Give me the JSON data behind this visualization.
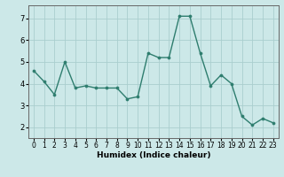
{
  "x": [
    0,
    1,
    2,
    3,
    4,
    5,
    6,
    7,
    8,
    9,
    10,
    11,
    12,
    13,
    14,
    15,
    16,
    17,
    18,
    19,
    20,
    21,
    22,
    23
  ],
  "y": [
    4.6,
    4.1,
    3.5,
    5.0,
    3.8,
    3.9,
    3.8,
    3.8,
    3.8,
    3.3,
    3.4,
    5.4,
    5.2,
    5.2,
    7.1,
    7.1,
    5.4,
    3.9,
    4.4,
    4.0,
    2.5,
    2.1,
    2.4,
    2.2
  ],
  "line_color": "#2e7d6e",
  "marker_color": "#2e7d6e",
  "bg_color": "#cce8e8",
  "grid_color": "#aacece",
  "xlabel": "Humidex (Indice chaleur)",
  "xlim": [
    -0.5,
    23.5
  ],
  "ylim": [
    1.5,
    7.6
  ],
  "yticks": [
    2,
    3,
    4,
    5,
    6,
    7
  ],
  "xticks": [
    0,
    1,
    2,
    3,
    4,
    5,
    6,
    7,
    8,
    9,
    10,
    11,
    12,
    13,
    14,
    15,
    16,
    17,
    18,
    19,
    20,
    21,
    22,
    23
  ],
  "xlabel_fontsize": 6.5,
  "tick_fontsize": 5.5,
  "linewidth": 1.0,
  "markersize": 2.2
}
